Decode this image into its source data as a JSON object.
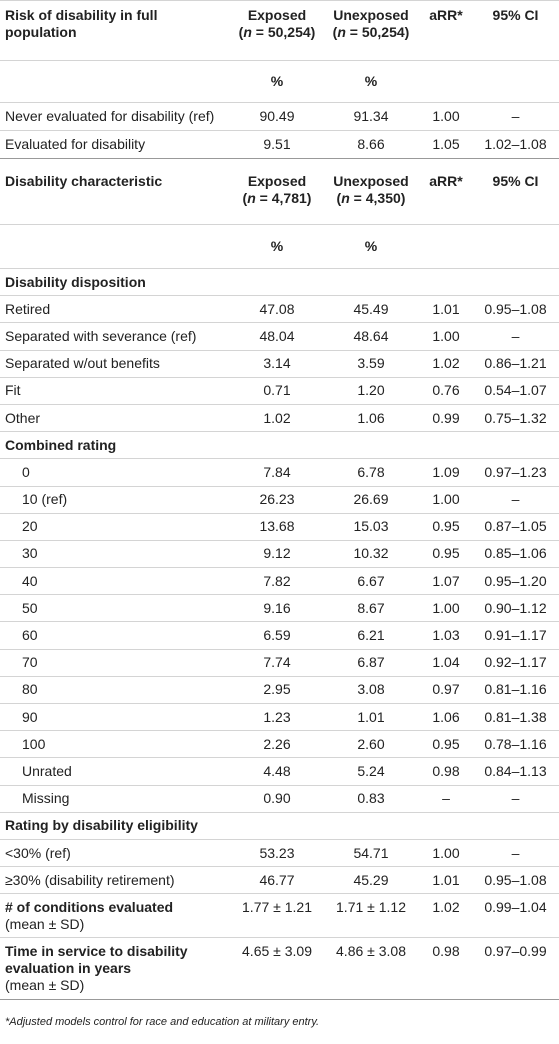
{
  "section1": {
    "header": {
      "label": "Risk of disability in full population",
      "exposed": {
        "title": "Exposed",
        "n_parts": [
          "(",
          "n",
          " = 50,254)"
        ]
      },
      "unexposed": {
        "title": "Unexposed",
        "n_parts": [
          "(",
          "n",
          " = 50,254)"
        ]
      },
      "arr": "aRR*",
      "ci": "95% CI"
    },
    "units": [
      "%",
      "%"
    ],
    "rows": [
      [
        "Never evaluated for disability (ref)",
        "90.49",
        "91.34",
        "1.00",
        "–"
      ],
      [
        "Evaluated for disability",
        "9.51",
        "8.66",
        "1.05",
        "1.02–1.08"
      ]
    ]
  },
  "section2": {
    "header": {
      "label": "Disability characteristic",
      "exposed": {
        "title": "Exposed",
        "n_parts": [
          "(",
          "n",
          " = 4,781)"
        ]
      },
      "unexposed": {
        "title": "Unexposed",
        "n_parts": [
          "(",
          "n",
          " = 4,350)"
        ]
      },
      "arr": "aRR*",
      "ci": "95% CI"
    },
    "units": [
      "%",
      "%"
    ],
    "groups": [
      {
        "label": "Disability disposition",
        "indent": false,
        "rows": [
          [
            "Retired",
            "47.08",
            "45.49",
            "1.01",
            "0.95–1.08"
          ],
          [
            "Separated with severance (ref)",
            "48.04",
            "48.64",
            "1.00",
            "–"
          ],
          [
            "Separated w/out benefits",
            "3.14",
            "3.59",
            "1.02",
            "0.86–1.21"
          ],
          [
            "Fit",
            "0.71",
            "1.20",
            "0.76",
            "0.54–1.07"
          ],
          [
            "Other",
            "1.02",
            "1.06",
            "0.99",
            "0.75–1.32"
          ]
        ]
      },
      {
        "label": "Combined rating",
        "indent": true,
        "rows": [
          [
            "0",
            "7.84",
            "6.78",
            "1.09",
            "0.97–1.23"
          ],
          [
            "10 (ref)",
            "26.23",
            "26.69",
            "1.00",
            "–"
          ],
          [
            "20",
            "13.68",
            "15.03",
            "0.95",
            "0.87–1.05"
          ],
          [
            "30",
            "9.12",
            "10.32",
            "0.95",
            "0.85–1.06"
          ],
          [
            "40",
            "7.82",
            "6.67",
            "1.07",
            "0.95–1.20"
          ],
          [
            "50",
            "9.16",
            "8.67",
            "1.00",
            "0.90–1.12"
          ],
          [
            "60",
            "6.59",
            "6.21",
            "1.03",
            "0.91–1.17"
          ],
          [
            "70",
            "7.74",
            "6.87",
            "1.04",
            "0.92–1.17"
          ],
          [
            "80",
            "2.95",
            "3.08",
            "0.97",
            "0.81–1.16"
          ],
          [
            "90",
            "1.23",
            "1.01",
            "1.06",
            "0.81–1.38"
          ],
          [
            "100",
            "2.26",
            "2.60",
            "0.95",
            "0.78–1.16"
          ],
          [
            "Unrated",
            "4.48",
            "5.24",
            "0.98",
            "0.84–1.13"
          ],
          [
            "Missing",
            "0.90",
            "0.83",
            "–",
            "–"
          ]
        ]
      },
      {
        "label": "Rating by disability eligibility",
        "indent": false,
        "rows": [
          [
            "<30% (ref)",
            "53.23",
            "54.71",
            "1.00",
            "–"
          ],
          [
            "≥30% (disability retirement)",
            "46.77",
            "45.29",
            "1.01",
            "0.95–1.08"
          ]
        ]
      }
    ],
    "summary": [
      {
        "label": "# of conditions evaluated",
        "sublabel": "(mean ± SD)",
        "cells": [
          "1.77 ± 1.21",
          "1.71 ± 1.12",
          "1.02",
          "0.99–1.04"
        ]
      },
      {
        "label": "Time in service to disability evaluation in years",
        "sublabel": "(mean ± SD)",
        "cells": [
          "4.65 ± 3.09",
          "4.86 ± 3.08",
          "0.98",
          "0.97–0.99"
        ]
      }
    ]
  },
  "footnote": "*Adjusted models control for race and education at military entry."
}
